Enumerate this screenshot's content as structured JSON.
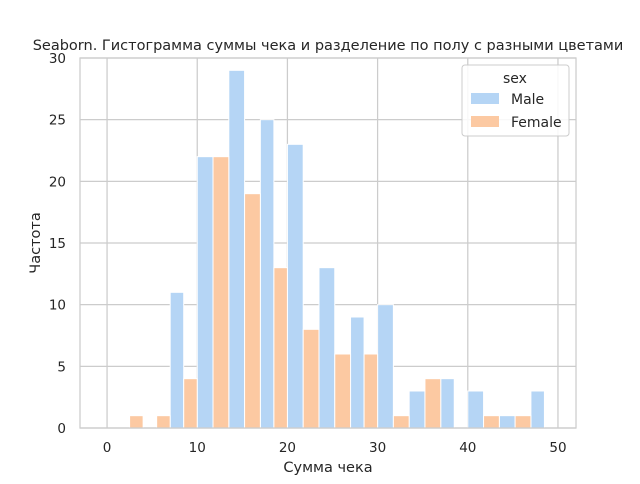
{
  "chart_data": {
    "type": "bar",
    "title": "Seaborn. Гистограмма суммы чека и разделение по полу с разными цветами",
    "xlabel": "Сумма чека",
    "ylabel": "Частота",
    "xlim": [
      -3.0,
      52.0
    ],
    "ylim": [
      0,
      30
    ],
    "xticks": [
      0,
      10,
      20,
      30,
      40,
      50
    ],
    "yticks": [
      0,
      5,
      10,
      15,
      20,
      25,
      30
    ],
    "grid": true,
    "legend": {
      "title": "sex",
      "placement": "top-right"
    },
    "bin_edges": [
      1.0,
      4.0,
      7.0,
      10.0,
      13.5,
      17.0,
      20.0,
      23.5,
      27.0,
      30.0,
      33.5,
      37.0,
      40.0,
      43.5,
      47.0,
      50.0
    ],
    "series": [
      {
        "name": "Male",
        "color": "#b5d5f5",
        "values": [
          0,
          0,
          11,
          22,
          29,
          25,
          23,
          13,
          9,
          10,
          3,
          4,
          3,
          1,
          3
        ]
      },
      {
        "name": "Female",
        "color": "#fcc9a2",
        "values": [
          1,
          1,
          4,
          22,
          19,
          13,
          8,
          6,
          6,
          1,
          4,
          0,
          1,
          1,
          0
        ]
      }
    ]
  }
}
